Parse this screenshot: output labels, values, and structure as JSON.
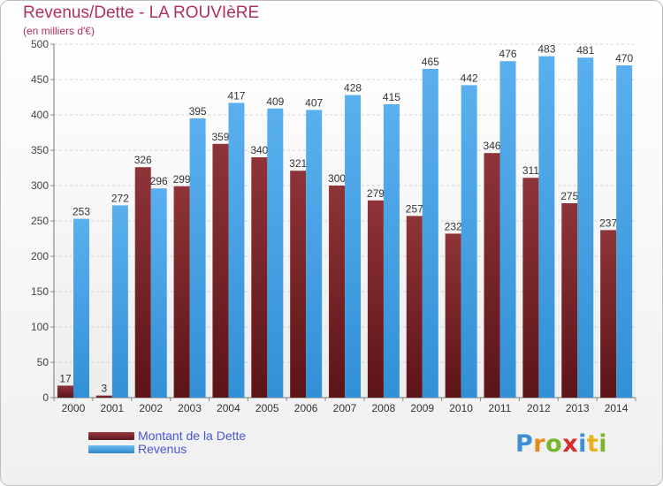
{
  "chart_data": {
    "type": "bar",
    "title": "Revenus/Dette - LA ROUVIèRE",
    "subtitle": "(en milliers d'€)",
    "categories": [
      "2000",
      "2001",
      "2002",
      "2003",
      "2004",
      "2005",
      "2006",
      "2007",
      "2008",
      "2009",
      "2010",
      "2011",
      "2012",
      "2013",
      "2014"
    ],
    "series": [
      {
        "name": "Montant de la Dette",
        "color": "#7a2a2e",
        "values": [
          17,
          3,
          326,
          299,
          359,
          340,
          321,
          300,
          279,
          257,
          232,
          346,
          311,
          275,
          237
        ]
      },
      {
        "name": "Revenus",
        "color": "#4aa3e6",
        "values": [
          253,
          272,
          296,
          395,
          417,
          409,
          407,
          428,
          415,
          465,
          442,
          476,
          483,
          481,
          470
        ]
      }
    ],
    "ylim": [
      0,
      500
    ],
    "yticks": [
      0,
      50,
      100,
      150,
      200,
      250,
      300,
      350,
      400,
      450,
      500
    ],
    "grid": true,
    "legend": "bottom-left"
  },
  "logo": {
    "letters": [
      "P",
      "r",
      "o",
      "x",
      "i",
      "t",
      "i"
    ]
  }
}
